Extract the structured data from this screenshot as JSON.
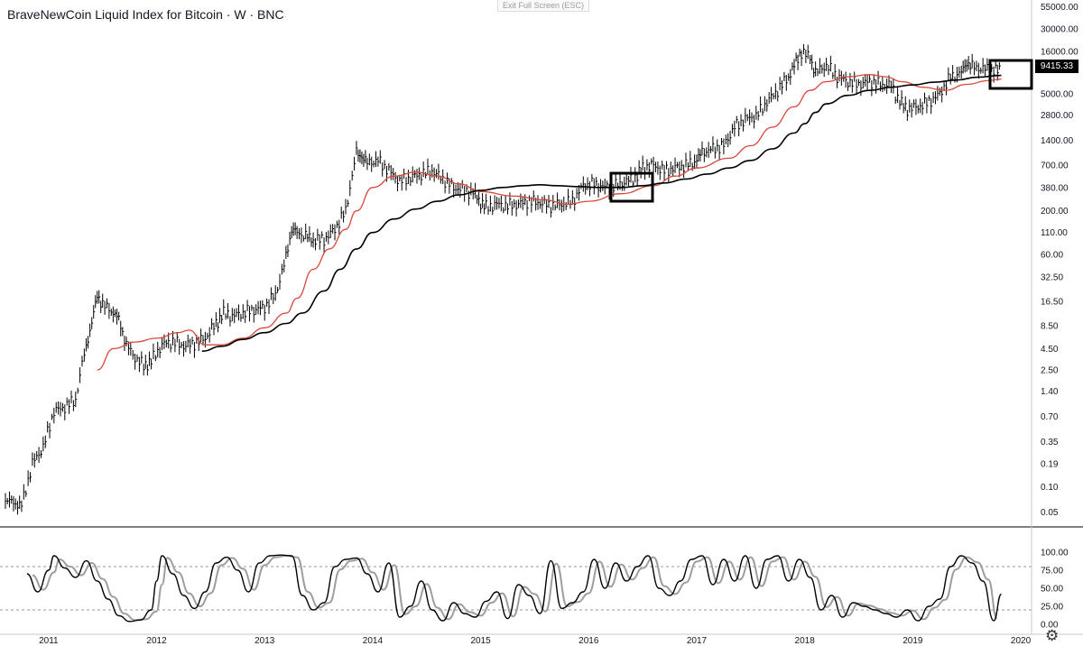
{
  "header": {
    "title": "BraveNewCoin Liquid Index for Bitcoin · W · BNC",
    "exit_fullscreen": "Exit Full Screen (ESC)"
  },
  "last_price": "9415.33",
  "icons": {
    "settings": "gear-icon"
  },
  "chart_data": [
    {
      "type": "line",
      "title": "BraveNewCoin Liquid Index for Bitcoin · W · BNC",
      "scale": "log",
      "y_ticks": [
        "55000.00",
        "30000.00",
        "16000.00",
        "9415.33",
        "5000.00",
        "2800.00",
        "1400.00",
        "700.00",
        "380.00",
        "200.00",
        "110.00",
        "60.00",
        "32.50",
        "16.50",
        "8.50",
        "4.50",
        "2.50",
        "1.40",
        "0.70",
        "0.35",
        "0.19",
        "0.10",
        "0.05"
      ],
      "x_ticks": [
        "2011",
        "2012",
        "2013",
        "2014",
        "2015",
        "2016",
        "2017",
        "2018",
        "2019",
        "2020"
      ],
      "x_range": [
        2010.55,
        2020.1
      ],
      "ylim": [
        0.035,
        60000
      ],
      "series": [
        {
          "style": "ohlc-bars",
          "color": "#000000",
          "x": [
            2010.6,
            2010.75,
            2010.85,
            2010.95,
            2011.05,
            2011.15,
            2011.25,
            2011.33,
            2011.4,
            2011.45,
            2011.5,
            2011.58,
            2011.65,
            2011.72,
            2011.8,
            2011.88,
            2011.95,
            2012.05,
            2012.15,
            2012.25,
            2012.35,
            2012.45,
            2012.55,
            2012.62,
            2012.7,
            2012.8,
            2012.9,
            2013.0,
            2013.1,
            2013.18,
            2013.25,
            2013.3,
            2013.38,
            2013.45,
            2013.55,
            2013.65,
            2013.75,
            2013.85,
            2013.9,
            2013.95,
            2014.05,
            2014.15,
            2014.25,
            2014.35,
            2014.45,
            2014.55,
            2014.65,
            2014.75,
            2014.85,
            2014.95,
            2015.0,
            2015.05,
            2015.15,
            2015.25,
            2015.35,
            2015.45,
            2015.55,
            2015.65,
            2015.75,
            2015.85,
            2015.95,
            2016.05,
            2016.15,
            2016.25,
            2016.35,
            2016.45,
            2016.5,
            2016.6,
            2016.7,
            2016.8,
            2016.9,
            2017.0,
            2017.05,
            2017.15,
            2017.25,
            2017.35,
            2017.45,
            2017.55,
            2017.65,
            2017.75,
            2017.85,
            2017.92,
            2017.97,
            2018.05,
            2018.1,
            2018.2,
            2018.3,
            2018.4,
            2018.5,
            2018.6,
            2018.7,
            2018.8,
            2018.88,
            2018.95,
            2019.05,
            2019.15,
            2019.25,
            2019.35,
            2019.45,
            2019.5,
            2019.55,
            2019.65,
            2019.75,
            2019.82
          ],
          "values": [
            0.07,
            0.06,
            0.19,
            0.3,
            0.8,
            0.9,
            1.1,
            4,
            9,
            20,
            15,
            13,
            10,
            5,
            3.5,
            2.8,
            3.2,
            5,
            5.5,
            4.8,
            5.2,
            6,
            9,
            12,
            11,
            12,
            13,
            14,
            20,
            45,
            120,
            110,
            100,
            90,
            90,
            120,
            200,
            1000,
            900,
            750,
            800,
            600,
            450,
            500,
            550,
            600,
            480,
            380,
            350,
            320,
            250,
            220,
            240,
            230,
            240,
            260,
            250,
            230,
            240,
            260,
            400,
            420,
            380,
            400,
            450,
            520,
            650,
            700,
            600,
            650,
            700,
            800,
            1000,
            1100,
            1200,
            2000,
            2500,
            2700,
            4000,
            5500,
            8000,
            12000,
            16000,
            13500,
            9000,
            11000,
            8000,
            7000,
            6500,
            7000,
            6500,
            6300,
            4000,
            3300,
            3500,
            4000,
            5000,
            8000,
            9000,
            12000,
            10500,
            10000,
            9500,
            9415
          ]
        },
        {
          "style": "moving-average",
          "color": "#d8473a",
          "x": [
            2011.45,
            2011.6,
            2011.8,
            2012.0,
            2012.2,
            2012.3,
            2012.45,
            2012.6,
            2012.8,
            2013.0,
            2013.2,
            2013.3,
            2013.45,
            2013.6,
            2013.75,
            2013.85,
            2014.0,
            2014.2,
            2014.4,
            2014.6,
            2014.8,
            2015.0,
            2015.3,
            2015.6,
            2015.8,
            2016.0,
            2016.3,
            2016.6,
            2016.8,
            2017.0,
            2017.3,
            2017.5,
            2017.7,
            2017.9,
            2018.05,
            2018.2,
            2018.4,
            2018.6,
            2018.75,
            2018.9,
            2019.1,
            2019.3,
            2019.5,
            2019.7,
            2019.82
          ],
          "values": [
            2.5,
            4.5,
            5.4,
            6,
            7,
            7.5,
            5,
            5,
            6,
            8,
            12,
            18,
            40,
            70,
            120,
            200,
            380,
            520,
            580,
            520,
            420,
            340,
            300,
            270,
            240,
            260,
            320,
            400,
            520,
            650,
            850,
            1200,
            2000,
            3500,
            5500,
            7000,
            8000,
            8500,
            8000,
            7000,
            6000,
            5500,
            6500,
            7200,
            7500
          ]
        },
        {
          "style": "moving-average",
          "color": "#000000",
          "x": [
            2012.42,
            2012.6,
            2012.8,
            2013.0,
            2013.2,
            2013.35,
            2013.55,
            2013.7,
            2013.85,
            2014.0,
            2014.2,
            2014.4,
            2014.6,
            2014.8,
            2015.0,
            2015.2,
            2015.4,
            2015.55,
            2015.7,
            2015.9,
            2016.1,
            2016.3,
            2016.5,
            2016.7,
            2016.9,
            2017.1,
            2017.3,
            2017.5,
            2017.7,
            2017.9,
            2018.0,
            2018.1,
            2018.2,
            2018.4,
            2018.6,
            2018.8,
            2019.0,
            2019.2,
            2019.4,
            2019.6,
            2019.82
          ],
          "values": [
            4.2,
            4.8,
            5.8,
            7,
            9,
            12,
            22,
            40,
            70,
            110,
            160,
            210,
            260,
            310,
            350,
            380,
            400,
            410,
            400,
            390,
            380,
            380,
            400,
            430,
            480,
            550,
            650,
            800,
            1100,
            1700,
            2200,
            3000,
            3800,
            4800,
            5500,
            6000,
            6400,
            6900,
            7300,
            7900,
            8300
          ]
        }
      ]
    },
    {
      "type": "line",
      "title": "",
      "ylim": [
        0,
        100
      ],
      "y_ticks": [
        "100.00",
        "75.00",
        "50.00",
        "25.00",
        "0.00"
      ],
      "levels": [
        80,
        20
      ],
      "series": [
        {
          "style": "oscillator-k",
          "color": "#000000",
          "x": [
            2010.8,
            2010.9,
            2011.0,
            2011.05,
            2011.15,
            2011.25,
            2011.35,
            2011.45,
            2011.55,
            2011.65,
            2011.75,
            2011.85,
            2011.95,
            2012.0,
            2012.05,
            2012.15,
            2012.25,
            2012.35,
            2012.45,
            2012.55,
            2012.65,
            2012.75,
            2012.85,
            2012.95,
            2013.05,
            2013.15,
            2013.25,
            2013.35,
            2013.45,
            2013.55,
            2013.65,
            2013.75,
            2013.85,
            2013.95,
            2014.05,
            2014.15,
            2014.25,
            2014.35,
            2014.45,
            2014.55,
            2014.65,
            2014.75,
            2014.85,
            2014.95,
            2015.05,
            2015.15,
            2015.25,
            2015.35,
            2015.45,
            2015.55,
            2015.65,
            2015.75,
            2015.85,
            2015.95,
            2016.05,
            2016.15,
            2016.25,
            2016.35,
            2016.45,
            2016.55,
            2016.65,
            2016.75,
            2016.85,
            2016.95,
            2017.05,
            2017.15,
            2017.25,
            2017.35,
            2017.45,
            2017.55,
            2017.65,
            2017.75,
            2017.85,
            2017.95,
            2018.05,
            2018.15,
            2018.25,
            2018.35,
            2018.45,
            2018.55,
            2018.65,
            2018.75,
            2018.85,
            2018.95,
            2019.05,
            2019.15,
            2019.25,
            2019.35,
            2019.45,
            2019.55,
            2019.65,
            2019.75,
            2019.82
          ],
          "values": [
            70,
            45,
            75,
            95,
            78,
            65,
            88,
            60,
            35,
            12,
            4,
            6,
            20,
            60,
            95,
            70,
            40,
            22,
            45,
            85,
            93,
            75,
            45,
            85,
            95,
            96,
            95,
            40,
            20,
            30,
            80,
            90,
            92,
            70,
            45,
            85,
            10,
            25,
            60,
            20,
            5,
            30,
            15,
            10,
            32,
            45,
            8,
            55,
            40,
            15,
            88,
            22,
            30,
            45,
            90,
            50,
            85,
            60,
            80,
            95,
            50,
            40,
            60,
            90,
            95,
            55,
            90,
            60,
            95,
            50,
            90,
            95,
            60,
            90,
            65,
            20,
            40,
            10,
            30,
            25,
            20,
            15,
            10,
            20,
            5,
            25,
            35,
            80,
            95,
            85,
            60,
            5,
            42
          ]
        },
        {
          "style": "oscillator-d",
          "color": "#9e9e9e",
          "x": [
            2010.85,
            2010.95,
            2011.05,
            2011.1,
            2011.2,
            2011.3,
            2011.4,
            2011.5,
            2011.6,
            2011.7,
            2011.8,
            2011.9,
            2012.0,
            2012.05,
            2012.1,
            2012.2,
            2012.3,
            2012.4,
            2012.5,
            2012.6,
            2012.7,
            2012.8,
            2012.9,
            2013.0,
            2013.1,
            2013.2,
            2013.3,
            2013.4,
            2013.5,
            2013.6,
            2013.7,
            2013.8,
            2013.9,
            2014.0,
            2014.1,
            2014.2,
            2014.3,
            2014.4,
            2014.5,
            2014.6,
            2014.7,
            2014.8,
            2014.9,
            2015.0,
            2015.1,
            2015.2,
            2015.3,
            2015.4,
            2015.5,
            2015.6,
            2015.7,
            2015.8,
            2015.9,
            2016.0,
            2016.1,
            2016.2,
            2016.3,
            2016.4,
            2016.5,
            2016.6,
            2016.7,
            2016.8,
            2016.9,
            2017.0,
            2017.1,
            2017.2,
            2017.3,
            2017.4,
            2017.5,
            2017.6,
            2017.7,
            2017.8,
            2017.9,
            2018.0,
            2018.1,
            2018.2,
            2018.3,
            2018.4,
            2018.5,
            2018.6,
            2018.7,
            2018.8,
            2018.9,
            2019.0,
            2019.1,
            2019.2,
            2019.3,
            2019.4,
            2019.5,
            2019.6,
            2019.7,
            2019.78
          ],
          "values": [
            68,
            48,
            72,
            90,
            80,
            68,
            85,
            63,
            38,
            15,
            6,
            7,
            18,
            55,
            92,
            72,
            43,
            25,
            43,
            82,
            92,
            77,
            48,
            82,
            93,
            95,
            93,
            45,
            23,
            30,
            76,
            88,
            91,
            72,
            48,
            82,
            14,
            25,
            56,
            23,
            7,
            28,
            17,
            12,
            30,
            43,
            11,
            52,
            42,
            18,
            84,
            25,
            31,
            43,
            87,
            52,
            83,
            62,
            78,
            93,
            53,
            42,
            58,
            87,
            93,
            57,
            87,
            62,
            93,
            53,
            87,
            93,
            62,
            87,
            66,
            24,
            38,
            12,
            29,
            26,
            21,
            16,
            12,
            19,
            7,
            23,
            34,
            76,
            93,
            86,
            62,
            8
          ]
        }
      ]
    }
  ]
}
